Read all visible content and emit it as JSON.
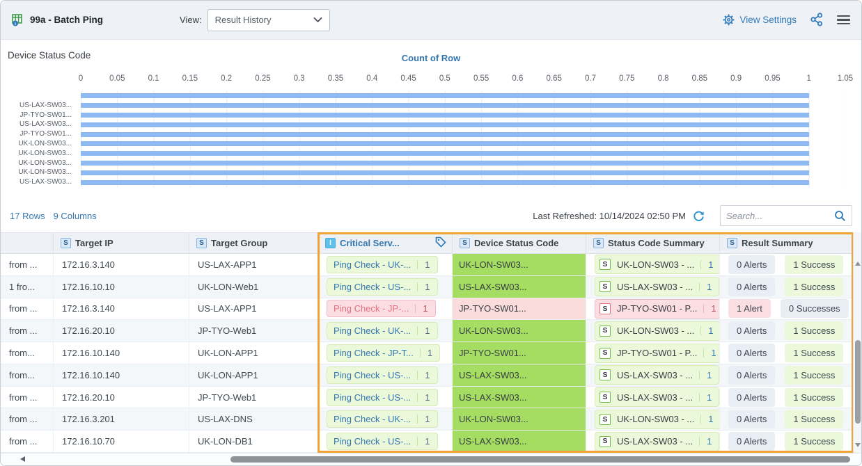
{
  "header": {
    "title": "99a - Batch Ping",
    "view_label": "View:",
    "view_value": "Result History",
    "view_settings_label": "View Settings"
  },
  "chart_data": {
    "type": "bar",
    "orientation": "horizontal",
    "title": "Device Status Code",
    "xlabel": "Count of Row",
    "categories": [
      "",
      "US-LAX-SW03...",
      "JP-TYO-SW01...",
      "US-LAX-SW03...",
      "JP-TYO-SW01...",
      "UK-LON-SW03...",
      "UK-LON-SW03...",
      "UK-LON-SW03...",
      "UK-LON-SW03...",
      "US-LAX-SW03..."
    ],
    "values": [
      1,
      1,
      1,
      1,
      1,
      1,
      1,
      1,
      1,
      1
    ],
    "xlim": [
      0,
      1.05
    ],
    "xticks": [
      "0",
      "0.05",
      "0.1",
      "0.15",
      "0.2",
      "0.25",
      "0.3",
      "0.35",
      "0.4",
      "0.45",
      "0.5",
      "0.55",
      "0.6",
      "0.65",
      "0.7",
      "0.75",
      "0.8",
      "0.85",
      "0.9",
      "0.95",
      "1",
      "1.05"
    ],
    "bar_color": "#8fb9f3",
    "grid": true,
    "legend": "none"
  },
  "table_meta": {
    "rows_label": "17 Rows",
    "columns_label": "9 Columns",
    "last_refreshed": "Last Refreshed: 10/14/2024 02:50 PM",
    "search_placeholder": "Search..."
  },
  "table": {
    "columns": [
      {
        "label": "",
        "icon": ""
      },
      {
        "label": "Target IP",
        "icon": "S"
      },
      {
        "label": "Target Group",
        "icon": "S"
      },
      {
        "label": "Critical Serv...",
        "icon": "I",
        "has_tag_icon": true,
        "highlighted": true
      },
      {
        "label": "Device Status Code",
        "icon": "S"
      },
      {
        "label": "Status Code Summary",
        "icon": "S"
      },
      {
        "label": "Result Summary",
        "icon": "S"
      }
    ],
    "rows": [
      {
        "result_truncated": "from ...",
        "target_ip": "172.16.3.140",
        "target_group": "US-LAX-APP1",
        "critical_service": {
          "label": "Ping Check - UK-...",
          "count": "1"
        },
        "device_status_code": "UK-LON-SW03...",
        "status_code_summary": {
          "icon": "S",
          "label": "UK-LON-SW03 - ...",
          "count": "1"
        },
        "result_summary": {
          "alerts": "0 Alerts",
          "successes": "1 Success"
        },
        "status": "success"
      },
      {
        "result_truncated": "1 fro...",
        "target_ip": "172.16.10.10",
        "target_group": "UK-LON-Web1",
        "critical_service": {
          "label": "Ping Check - US-...",
          "count": "1"
        },
        "device_status_code": "US-LAX-SW03...",
        "status_code_summary": {
          "icon": "S",
          "label": "US-LAX-SW03 - ...",
          "count": "1"
        },
        "result_summary": {
          "alerts": "0 Alerts",
          "successes": "1 Success"
        },
        "status": "success"
      },
      {
        "result_truncated": "from ...",
        "target_ip": "172.16.3.140",
        "target_group": "US-LAX-APP1",
        "critical_service": {
          "label": "Ping Check - JP-...",
          "count": "1"
        },
        "device_status_code": "JP-TYO-SW01...",
        "status_code_summary": {
          "icon": "S",
          "label": "JP-TYO-SW01 - P...",
          "count": "1"
        },
        "result_summary": {
          "alerts": "1 Alert",
          "successes": "0 Successes"
        },
        "status": "alert"
      },
      {
        "result_truncated": "from ...",
        "target_ip": "172.16.20.10",
        "target_group": "JP-TYO-Web1",
        "critical_service": {
          "label": "Ping Check - UK-...",
          "count": "1"
        },
        "device_status_code": "UK-LON-SW03...",
        "status_code_summary": {
          "icon": "S",
          "label": "UK-LON-SW03 - ...",
          "count": "1"
        },
        "result_summary": {
          "alerts": "0 Alerts",
          "successes": "1 Success"
        },
        "status": "success"
      },
      {
        "result_truncated": "from...",
        "target_ip": "172.16.10.140",
        "target_group": "UK-LON-APP1",
        "critical_service": {
          "label": "Ping Check - JP-T...",
          "count": "1"
        },
        "device_status_code": "JP-TYO-SW01...",
        "status_code_summary": {
          "icon": "S",
          "label": "JP-TYO-SW01 - P...",
          "count": "1"
        },
        "result_summary": {
          "alerts": "0 Alerts",
          "successes": "1 Success"
        },
        "status": "success"
      },
      {
        "result_truncated": "from...",
        "target_ip": "172.16.10.140",
        "target_group": "UK-LON-APP1",
        "critical_service": {
          "label": "Ping Check - US-...",
          "count": "1"
        },
        "device_status_code": "US-LAX-SW03...",
        "status_code_summary": {
          "icon": "S",
          "label": "US-LAX-SW03 - ...",
          "count": "1"
        },
        "result_summary": {
          "alerts": "0 Alerts",
          "successes": "1 Success"
        },
        "status": "success"
      },
      {
        "result_truncated": "from ...",
        "target_ip": "172.16.20.10",
        "target_group": "JP-TYO-Web1",
        "critical_service": {
          "label": "Ping Check - US-...",
          "count": "1"
        },
        "device_status_code": "US-LAX-SW03...",
        "status_code_summary": {
          "icon": "S",
          "label": "US-LAX-SW03 - ...",
          "count": "1"
        },
        "result_summary": {
          "alerts": "0 Alerts",
          "successes": "1 Success"
        },
        "status": "success"
      },
      {
        "result_truncated": "from ...",
        "target_ip": "172.16.3.201",
        "target_group": "US-LAX-DNS",
        "critical_service": {
          "label": "Ping Check - UK-...",
          "count": "1"
        },
        "device_status_code": "UK-LON-SW03...",
        "status_code_summary": {
          "icon": "S",
          "label": "UK-LON-SW03 - ...",
          "count": "1"
        },
        "result_summary": {
          "alerts": "0 Alerts",
          "successes": "1 Success"
        },
        "status": "success"
      },
      {
        "result_truncated": "from ...",
        "target_ip": "172.16.10.70",
        "target_group": "UK-LON-DB1",
        "critical_service": {
          "label": "Ping Check - US-...",
          "count": "1"
        },
        "device_status_code": "US-LAX-SW03...",
        "status_code_summary": {
          "icon": "S",
          "label": "US-LAX-SW03 - ...",
          "count": "1"
        },
        "result_summary": {
          "alerts": "0 Alerts",
          "successes": "1 Success"
        },
        "status": "success"
      }
    ]
  },
  "colors": {
    "accent_blue": "#3276b1",
    "bar_blue": "#8fb9f3",
    "success_green": "#a4dd62",
    "badge_green": "#ecf8da",
    "alert_pink": "#fadcdc",
    "badge_pink": "#fbdee2",
    "neutral_badge": "#e9edf4",
    "highlight_orange": "#f0a233",
    "header_bg": "#eef2f7"
  }
}
